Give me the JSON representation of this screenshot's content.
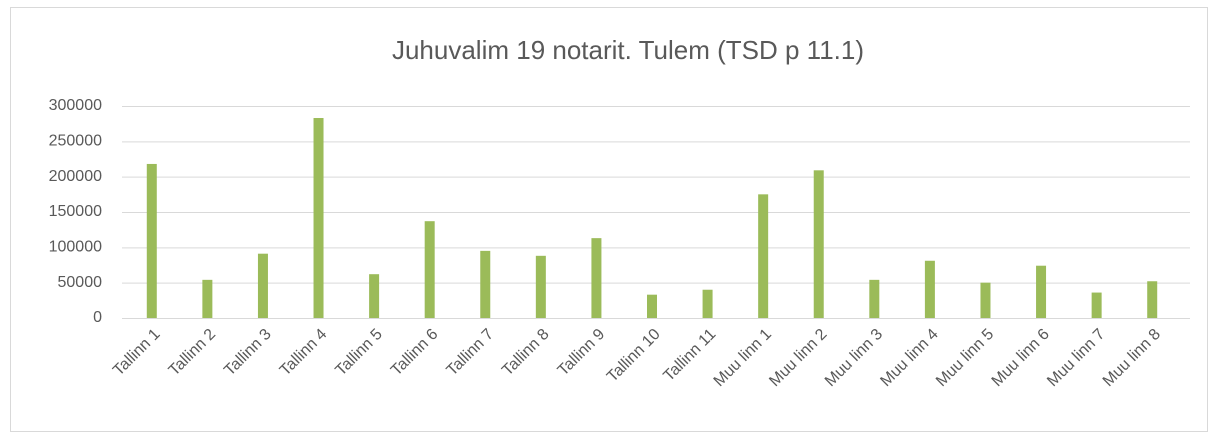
{
  "chart_data": {
    "type": "bar",
    "title": "Juhuvalim 19 notarit. Tulem (TSD p 11.1)",
    "categories": [
      "Tallinn 1",
      "Tallinn 2",
      "Tallinn 3",
      "Tallinn 4",
      "Tallinn 5",
      "Tallinn 6",
      "Tallinn 7",
      "Tallinn 8",
      "Tallinn 9",
      "Tallinn 10",
      "Tallinn 11",
      "Muu linn 1",
      "Muu linn 2",
      "Muu linn 3",
      "Muu linn 4",
      "Muu linn 5",
      "Muu linn 6",
      "Muu linn 7",
      "Muu linn 8"
    ],
    "values": [
      218000,
      54000,
      91000,
      283000,
      62000,
      137000,
      95000,
      88000,
      113000,
      33000,
      40000,
      175000,
      209000,
      54000,
      81000,
      50000,
      74000,
      36000,
      52000
    ],
    "color": "#9bbb59",
    "ylim": [
      0,
      300000
    ],
    "yticks": [
      0,
      50000,
      100000,
      150000,
      200000,
      250000,
      300000
    ],
    "grid": true
  }
}
